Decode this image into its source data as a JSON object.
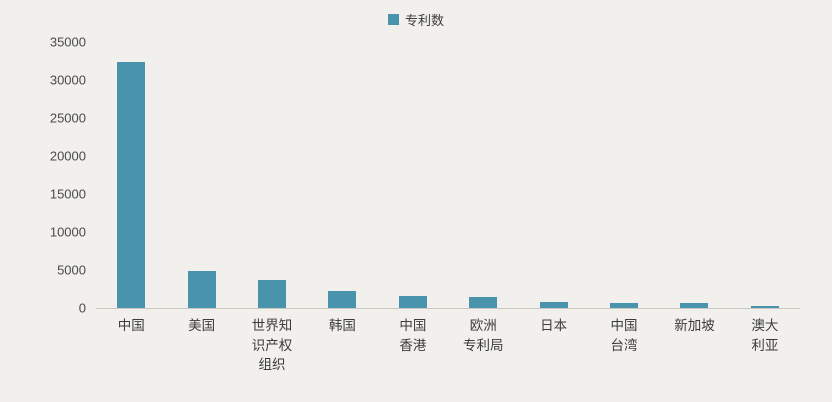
{
  "chart_data": {
    "type": "bar",
    "title": "",
    "legend_label": "专利数",
    "legend_position": "top-center",
    "categories": [
      "中国",
      "美国",
      "世界知识产权组织",
      "韩国",
      "中国香港",
      "欧洲专利局",
      "日本",
      "中国台湾",
      "新加坡",
      "澳大利亚"
    ],
    "categories_display": [
      [
        "中国"
      ],
      [
        "美国"
      ],
      [
        "世界知",
        "识产权",
        "组织"
      ],
      [
        "韩国"
      ],
      [
        "中国",
        "香港"
      ],
      [
        "欧洲",
        "专利局"
      ],
      [
        "日本"
      ],
      [
        "中国",
        "台湾"
      ],
      [
        "新加坡"
      ],
      [
        "澳大",
        "利亚"
      ]
    ],
    "values": [
      32400,
      4900,
      3700,
      2300,
      1600,
      1400,
      800,
      700,
      600,
      300
    ],
    "xlabel": "",
    "ylabel": "",
    "ylim": [
      0,
      35000
    ],
    "yticks": [
      0,
      5000,
      10000,
      15000,
      20000,
      25000,
      30000,
      35000
    ],
    "grid": false,
    "bar_color": "#4a93ad",
    "background_color": "#f2f0ed",
    "axis_line_color": "#c9c6c0"
  }
}
